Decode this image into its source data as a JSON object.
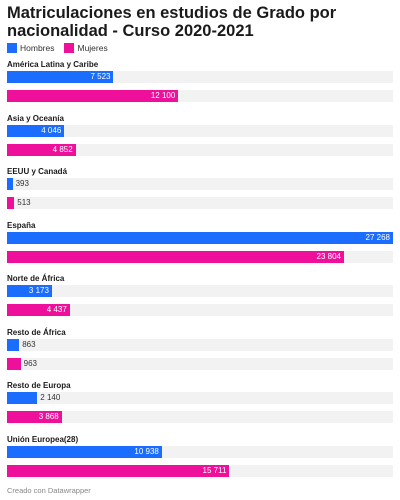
{
  "title": "Matriculaciones en estudios de Grado por nacionalidad - Curso 2020-2021",
  "footer": "Creado con Datawrapper",
  "colors": {
    "hombres": "#1a6dff",
    "mujeres": "#ee109b"
  },
  "chart_data": {
    "type": "bar",
    "orientation": "horizontal",
    "title": "Matriculaciones en estudios de Grado por nacionalidad - Curso 2020-2021",
    "categories": [
      "América Latina y Caribe",
      "Asia y Oceanía",
      "EEUU y Canadá",
      "España",
      "Norte de África",
      "Resto de África",
      "Resto de Europa",
      "Unión Europea(28)"
    ],
    "series": [
      {
        "name": "Hombres",
        "values": [
          7523,
          4046,
          393,
          27268,
          3173,
          863,
          2140,
          10938
        ],
        "labels": [
          "7 523",
          "4 046",
          "393",
          "27 268",
          "3 173",
          "863",
          "2 140",
          "10 938"
        ]
      },
      {
        "name": "Mujeres",
        "values": [
          12100,
          4852,
          513,
          23804,
          4437,
          963,
          3868,
          15711
        ],
        "labels": [
          "12 100",
          "4 852",
          "513",
          "23 804",
          "4 437",
          "963",
          "3 868",
          "15 711"
        ]
      }
    ],
    "xlim": [
      0,
      27268
    ],
    "legend": "top-left",
    "grid": false
  }
}
